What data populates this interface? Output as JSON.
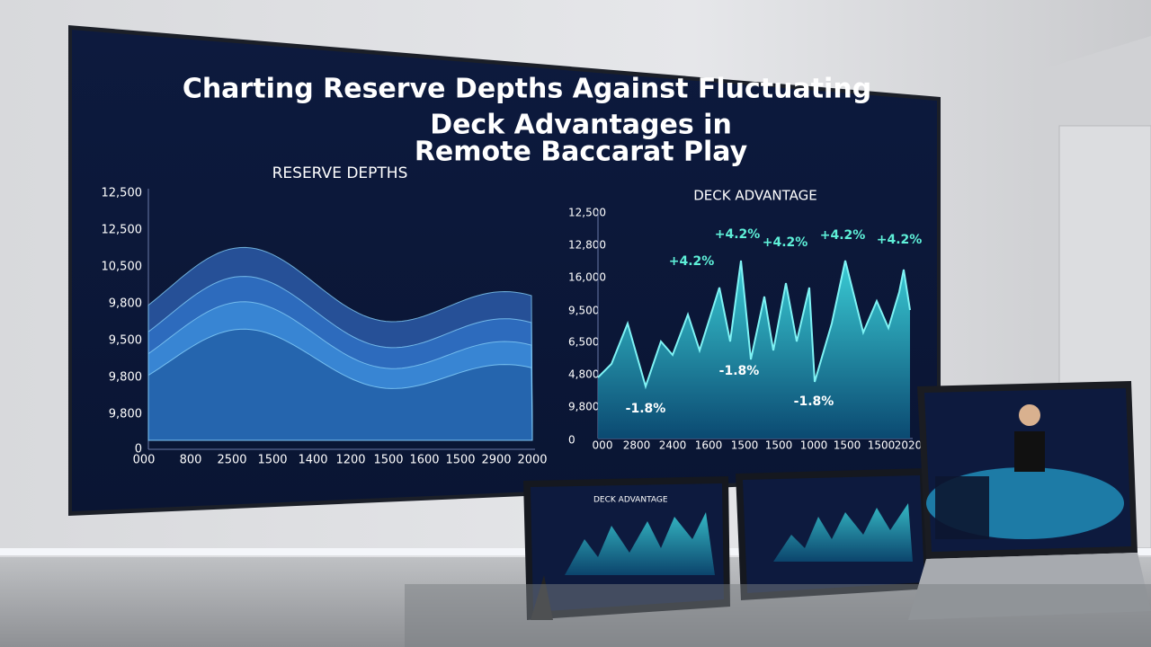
{
  "title": "Charting Reserve Depths Against Fluctuating Deck Advantages in Remote Baccarat Play",
  "left_chart": {
    "title": "RESERVE DEPTHS",
    "y_labels": [
      "12,500",
      "12,500",
      "10,500",
      "9,800",
      "9,500",
      "9,800",
      "9,800",
      "0"
    ],
    "x_labels": [
      "000",
      "800",
      "2500",
      "1500",
      "1400",
      "1200",
      "1500",
      "1600",
      "1500",
      "2900",
      "2000"
    ]
  },
  "right_chart": {
    "title": "DECK ADVANTAGE",
    "y_labels": [
      "12,500",
      "12,800",
      "16,000",
      "9,500",
      "6,500",
      "4,800",
      "9,800",
      "0"
    ],
    "x_labels": [
      "000",
      "2800",
      "2400",
      "1600",
      "1500",
      "1500",
      "1000",
      "1500",
      "1500",
      "2020"
    ],
    "annotations": [
      "+4.2%",
      "+4.2%",
      "+4.2%",
      "+4.2%",
      "+4.2%",
      "-1.8%",
      "-1.8%",
      "-1.8%"
    ]
  },
  "tablet": {
    "title": "DECK ADVANTAGE"
  }
}
